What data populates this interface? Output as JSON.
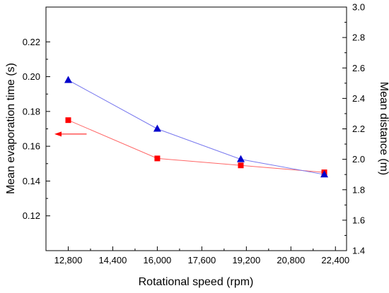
{
  "chart_data": {
    "type": "line",
    "xlabel": "Rotational speed (rpm)",
    "ylabel_left": "Mean evaporation time (s)",
    "ylabel_right": "Mean distance (m)",
    "x": [
      12800,
      16000,
      19000,
      22000
    ],
    "x_ticks": [
      12800,
      14400,
      16000,
      17600,
      19200,
      20800,
      22400
    ],
    "x_tick_labels": [
      "12,800",
      "14,400",
      "16,000",
      "17,600",
      "19,200",
      "20,800",
      "22,400"
    ],
    "xlim": [
      12000,
      22800
    ],
    "ylim_left": [
      0.1,
      0.24
    ],
    "y_ticks_left": [
      0.12,
      0.14,
      0.16,
      0.18,
      0.2,
      0.22
    ],
    "y_tick_labels_left": [
      "0.12",
      "0.14",
      "0.16",
      "0.18",
      "0.20",
      "0.22"
    ],
    "ylim_right": [
      1.4,
      3.0
    ],
    "y_ticks_right": [
      1.4,
      1.6,
      1.8,
      2.0,
      2.2,
      2.4,
      2.6,
      2.8,
      3.0
    ],
    "y_tick_labels_right": [
      "1.4",
      "1.6",
      "1.8",
      "2.0",
      "2.2",
      "2.4",
      "2.6",
      "2.8",
      "3.0"
    ],
    "series": [
      {
        "axis": "left",
        "marker": "square",
        "color": "#ff0000",
        "line_color": "#ff6666",
        "values": [
          0.175,
          0.153,
          0.149,
          0.145
        ]
      },
      {
        "axis": "right",
        "marker": "triangle",
        "color": "#0000cc",
        "line_color": "#7777ee",
        "values": [
          2.52,
          2.2,
          2.0,
          1.9
        ]
      }
    ],
    "annotations": [
      {
        "type": "arrow",
        "points_to": "left-axis",
        "color": "#ff0000",
        "y_value": 0.167
      }
    ],
    "grid": false
  }
}
